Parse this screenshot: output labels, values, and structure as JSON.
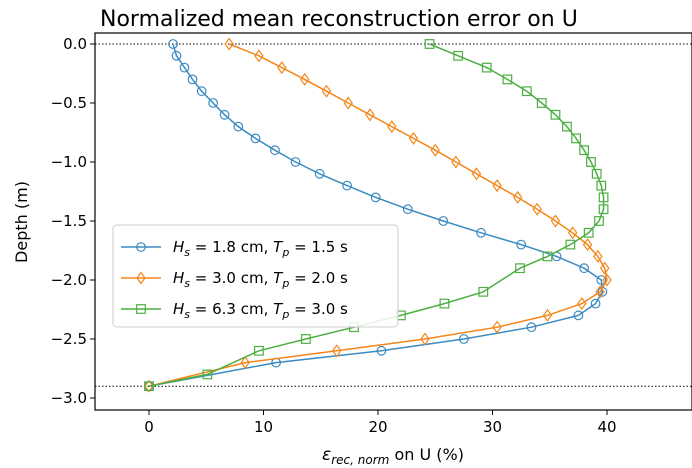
{
  "chart_data": {
    "type": "line",
    "title": "Normalized mean reconstruction error on U",
    "xlabel": {
      "prefix": "ε",
      "sub": "rec, norm",
      "suffix": " on U (%)"
    },
    "ylabel": "Depth (m)",
    "xlim": [
      -4.5,
      47
    ],
    "ylim": [
      -3.0,
      0.1
    ],
    "xticks": [
      0,
      10,
      20,
      30,
      40
    ],
    "yticks": [
      0.0,
      -0.5,
      -1.0,
      -1.5,
      -2.0,
      -2.5,
      -3.0
    ],
    "xtick_labels": [
      "0",
      "10",
      "20",
      "30",
      "40"
    ],
    "ytick_labels": [
      "0.0",
      "−0.5",
      "−1.0",
      "−1.5",
      "−2.0",
      "−2.5",
      "−3.0"
    ],
    "hlines": [
      0.0,
      -2.9
    ],
    "grid": false,
    "legend_position": "center-left",
    "series": [
      {
        "legend_parts": [
          [
            "H",
            "s",
            " = 1.8 cm, "
          ],
          [
            "T",
            "p",
            " = 1.5 s"
          ]
        ],
        "color": "#3b8bc2",
        "marker": "circle",
        "x": [
          2.1,
          2.4,
          3.1,
          3.8,
          4.6,
          5.6,
          6.6,
          7.8,
          9.3,
          11.0,
          12.8,
          14.9,
          17.3,
          19.8,
          22.6,
          25.7,
          29.0,
          32.5,
          35.6,
          38.0,
          39.5,
          39.6,
          39.0,
          37.5,
          33.4,
          27.5,
          20.3,
          11.1,
          0.0
        ],
        "y": [
          0.0,
          -0.1,
          -0.2,
          -0.3,
          -0.4,
          -0.5,
          -0.6,
          -0.7,
          -0.8,
          -0.9,
          -1.0,
          -1.1,
          -1.2,
          -1.3,
          -1.4,
          -1.5,
          -1.6,
          -1.7,
          -1.8,
          -1.9,
          -2.0,
          -2.1,
          -2.2,
          -2.3,
          -2.4,
          -2.5,
          -2.6,
          -2.7,
          -2.9
        ]
      },
      {
        "legend_parts": [
          [
            "H",
            "s",
            " = 3.0 cm, "
          ],
          [
            "T",
            "p",
            " = 2.0 s"
          ]
        ],
        "color": "#f58518",
        "marker": "diamond",
        "x": [
          7.0,
          9.6,
          11.6,
          13.6,
          15.5,
          17.4,
          19.3,
          21.2,
          23.1,
          25.0,
          26.8,
          28.6,
          30.4,
          32.2,
          33.9,
          35.5,
          37.0,
          38.3,
          39.2,
          39.8,
          40.0,
          39.4,
          37.8,
          34.8,
          30.4,
          24.1,
          16.4,
          8.4,
          0.0
        ],
        "y": [
          0.0,
          -0.1,
          -0.2,
          -0.3,
          -0.4,
          -0.5,
          -0.6,
          -0.7,
          -0.8,
          -0.9,
          -1.0,
          -1.1,
          -1.2,
          -1.3,
          -1.4,
          -1.5,
          -1.6,
          -1.7,
          -1.8,
          -1.9,
          -2.0,
          -2.1,
          -2.2,
          -2.3,
          -2.4,
          -2.5,
          -2.6,
          -2.7,
          -2.9
        ]
      },
      {
        "legend_parts": [
          [
            "H",
            "s",
            " = 6.3 cm, "
          ],
          [
            "T",
            "p",
            " = 3.0 s"
          ]
        ],
        "color": "#4caf41",
        "marker": "square",
        "x": [
          24.5,
          27.0,
          29.5,
          31.3,
          33.0,
          34.3,
          35.5,
          36.5,
          37.3,
          38.0,
          38.6,
          39.1,
          39.5,
          39.7,
          39.7,
          39.3,
          38.4,
          36.8,
          34.8,
          32.4,
          29.2,
          25.8,
          22.0,
          17.9,
          13.7,
          9.6,
          5.1,
          0.0
        ],
        "y": [
          0.0,
          -0.1,
          -0.2,
          -0.3,
          -0.4,
          -0.5,
          -0.6,
          -0.7,
          -0.8,
          -0.9,
          -1.0,
          -1.1,
          -1.2,
          -1.3,
          -1.4,
          -1.5,
          -1.6,
          -1.7,
          -1.8,
          -1.9,
          -2.1,
          -2.2,
          -2.3,
          -2.4,
          -2.5,
          -2.6,
          -2.8,
          -2.9
        ]
      }
    ]
  }
}
